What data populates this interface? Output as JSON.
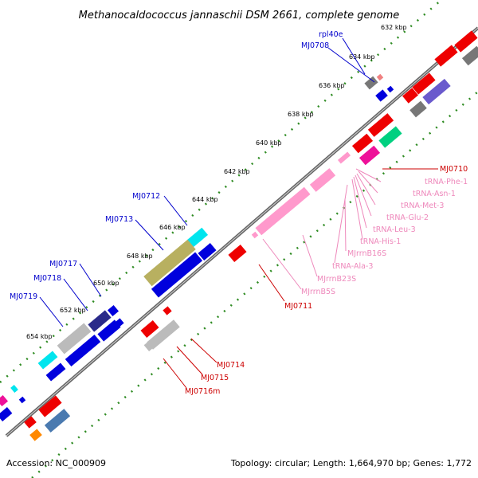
{
  "title": "Methanocaldococcus jannaschii DSM 2661, complete genome",
  "accession": "Accession: NC_000909",
  "summary": "Topology: circular; Length: 1,664,970 bp; Genes: 1,772",
  "colors": {
    "backbone": "#808080",
    "tick": "#2e8b22",
    "blue_label": "#0000cc",
    "red_label": "#cc0000",
    "rna_label": "#ee88bb"
  },
  "ticks": [
    "632 kbp",
    "634 kbp",
    "636 kbp",
    "638 kbp",
    "640 kbp",
    "642 kbp",
    "644 kbp",
    "646 kbp",
    "648 kbp",
    "650 kbp",
    "652 kbp",
    "654 kbp"
  ],
  "outer_labels": [
    "rpl40e",
    "MJ0708",
    "MJ0712",
    "MJ0713",
    "MJ0717",
    "MJ0718",
    "MJ0719"
  ],
  "inner_red_labels": [
    "MJ0710",
    "MJ0711",
    "MJ0714",
    "MJ0715",
    "MJ0716m"
  ],
  "rna_labels": [
    "tRNA-Phe-1",
    "tRNA-Asn-1",
    "tRNA-Met-3",
    "tRNA-Glu-2",
    "tRNA-Leu-3",
    "tRNA-His-1",
    "MJrrnB16S",
    "tRNA-Ala-3",
    "MJrrnB23S",
    "MJrrnB5S"
  ]
}
